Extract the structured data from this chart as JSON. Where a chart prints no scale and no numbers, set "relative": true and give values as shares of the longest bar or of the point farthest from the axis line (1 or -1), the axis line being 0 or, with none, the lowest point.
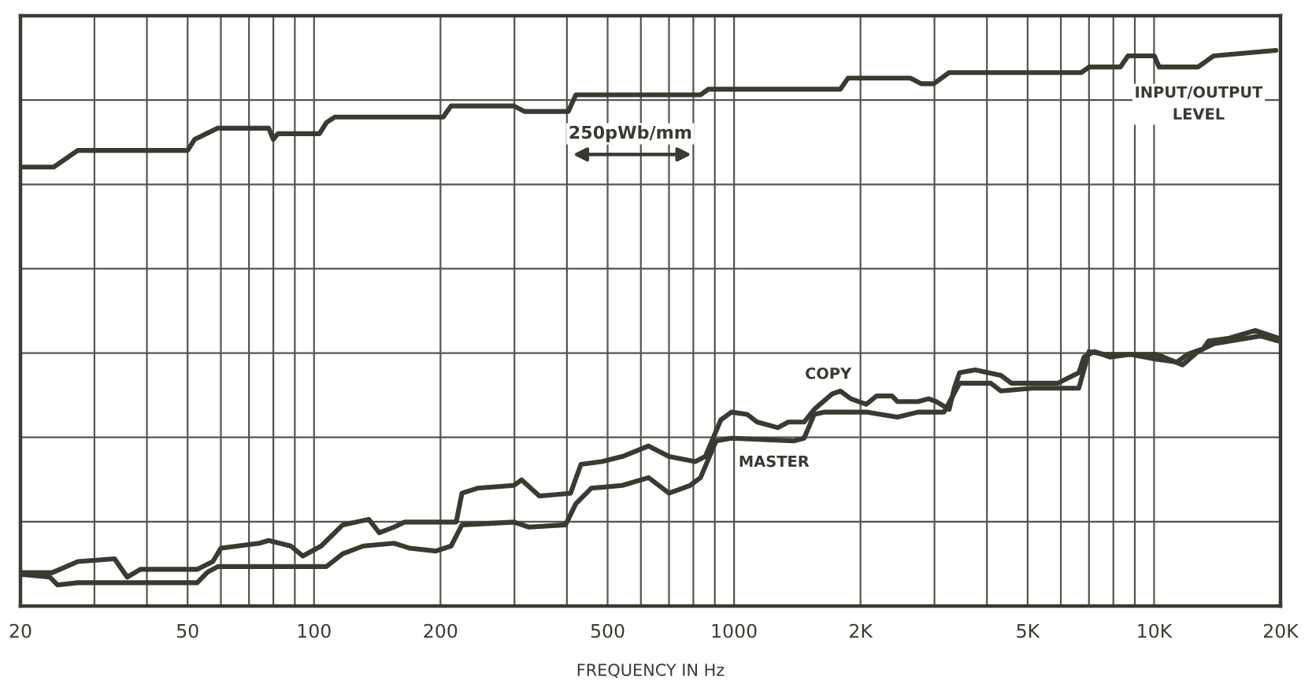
{
  "chart_data": {
    "type": "line",
    "relative": true,
    "xlabel": "FREQUENCY IN Hz",
    "log": "x",
    "grid": true,
    "legend": false,
    "annotations": [
      "250pWb/mm"
    ],
    "xlim": [
      20,
      20000
    ],
    "xticks": [
      20,
      {
        "value": 30,
        "label": null
      },
      {
        "value": 40,
        "label": null
      },
      50,
      {
        "value": 60,
        "label": null
      },
      {
        "value": 70,
        "label": null
      },
      {
        "value": 80,
        "label": null
      },
      {
        "value": 90,
        "label": null
      },
      100,
      200,
      {
        "value": 300,
        "label": null
      },
      {
        "value": 400,
        "label": null
      },
      500,
      {
        "value": 600,
        "label": null
      },
      {
        "value": 700,
        "label": null
      },
      {
        "value": 800,
        "label": null
      },
      {
        "value": 900,
        "label": null
      },
      1000,
      {
        "value": 2000,
        "label": "2K"
      },
      {
        "value": 3000,
        "label": null
      },
      {
        "value": 4000,
        "label": null
      },
      {
        "value": 5000,
        "label": "5K"
      },
      {
        "value": 6000,
        "label": null
      },
      {
        "value": 7000,
        "label": null
      },
      {
        "value": 8000,
        "label": null
      },
      {
        "value": 9000,
        "label": null
      },
      {
        "value": 10000,
        "label": "10K"
      },
      {
        "value": 20000,
        "label": "20K"
      }
    ],
    "series": [
      {
        "name": "INPUT/OUTPUT\nLEVEL",
        "color": "#3a3a32",
        "x": [
          20,
          24,
          27.4,
          30,
          50,
          52,
          59,
          64,
          78,
          80,
          82,
          103,
          107,
          112,
          203,
          212,
          299,
          317,
          403,
          420,
          590,
          832,
          868,
          944,
          1790,
          1868,
          2630,
          2790,
          2990,
          3250,
          3540,
          6710,
          7000,
          8310,
          8670,
          10020,
          10280,
          12720,
          13860,
          19500
        ],
        "values": [
          0.79,
          0.79,
          0.82,
          0.82,
          0.82,
          0.84,
          0.86,
          0.86,
          0.86,
          0.84,
          0.85,
          0.85,
          0.87,
          0.88,
          0.88,
          0.9,
          0.9,
          0.89,
          0.89,
          0.92,
          0.92,
          0.92,
          0.93,
          0.93,
          0.93,
          0.95,
          0.95,
          0.94,
          0.94,
          0.96,
          0.96,
          0.96,
          0.97,
          0.97,
          0.99,
          0.99,
          0.97,
          0.97,
          0.99,
          1.0
        ]
      },
      {
        "name": "COPY",
        "color": "#3a3a32",
        "x": [
          20,
          23.8,
          27.4,
          33.5,
          35.9,
          38.6,
          52.7,
          57.4,
          60,
          74,
          78,
          88,
          94,
          104,
          117,
          135,
          143,
          155,
          164,
          218,
          225,
          245,
          299,
          312,
          344,
          408,
          432,
          484,
          542,
          626,
          700,
          808,
          854,
          930,
          986,
          1074,
          1136,
          1272,
          1346,
          1468,
          1552,
          1714,
          1790,
          1896,
          2064,
          2184,
          2378,
          2448,
          2742,
          2904,
          3028,
          3252,
          3344,
          3444,
          3750,
          4320,
          4572,
          5906,
          6080,
          6620,
          6812,
          7208,
          7852,
          8790,
          10140,
          11350,
          12020,
          13090,
          13480,
          15100,
          17420,
          19770
        ],
        "values": [
          0.06,
          0.06,
          0.08,
          0.085,
          0.052,
          0.066,
          0.066,
          0.08,
          0.104,
          0.113,
          0.118,
          0.108,
          0.09,
          0.108,
          0.146,
          0.156,
          0.132,
          0.142,
          0.151,
          0.151,
          0.203,
          0.212,
          0.217,
          0.227,
          0.198,
          0.203,
          0.255,
          0.26,
          0.269,
          0.288,
          0.269,
          0.26,
          0.269,
          0.335,
          0.349,
          0.345,
          0.331,
          0.321,
          0.331,
          0.331,
          0.354,
          0.382,
          0.387,
          0.373,
          0.363,
          0.378,
          0.378,
          0.368,
          0.368,
          0.373,
          0.368,
          0.354,
          0.392,
          0.42,
          0.425,
          0.415,
          0.401,
          0.401,
          0.406,
          0.42,
          0.448,
          0.458,
          0.448,
          0.453,
          0.444,
          0.439,
          0.453,
          0.463,
          0.477,
          0.482,
          0.496,
          0.482
        ]
      },
      {
        "name": "MASTER",
        "color": "#3a3a32",
        "x": [
          20,
          23.5,
          24.5,
          27.4,
          52.7,
          55.8,
          59,
          107,
          117,
          131,
          155,
          169,
          195,
          212,
          225,
          299,
          325,
          397,
          420,
          457,
          542,
          626,
          700,
          786,
          832,
          906,
          986,
          1386,
          1468,
          1552,
          1644,
          2064,
          2448,
          2742,
          3162,
          3444,
          4084,
          4320,
          5126,
          6620,
          7000,
          7620,
          10140,
          11690,
          12720,
          13860,
          17900,
          19770
        ],
        "values": [
          0.057,
          0.052,
          0.038,
          0.042,
          0.042,
          0.061,
          0.071,
          0.071,
          0.094,
          0.108,
          0.113,
          0.104,
          0.099,
          0.108,
          0.146,
          0.151,
          0.142,
          0.146,
          0.184,
          0.212,
          0.217,
          0.231,
          0.203,
          0.217,
          0.231,
          0.297,
          0.302,
          0.297,
          0.302,
          0.345,
          0.349,
          0.349,
          0.34,
          0.349,
          0.349,
          0.401,
          0.401,
          0.387,
          0.392,
          0.392,
          0.458,
          0.453,
          0.453,
          0.434,
          0.458,
          0.472,
          0.486,
          0.477
        ]
      }
    ]
  }
}
